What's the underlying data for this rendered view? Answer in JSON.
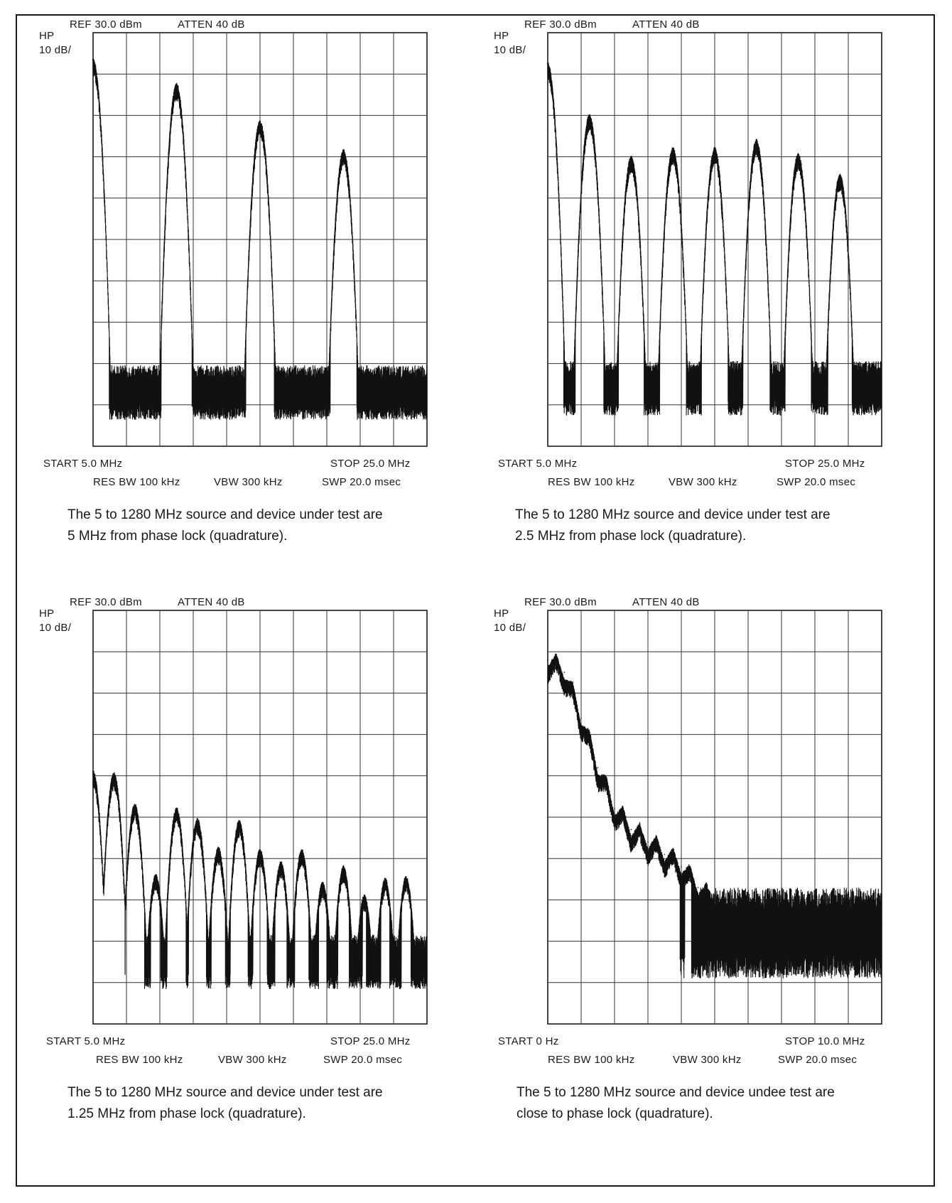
{
  "panels": [
    {
      "hp": "HP",
      "ref": "REF 30.0 dBm",
      "atten": "ATTEN 40 dB",
      "scale": "10 dB/",
      "start": "START 5.0 MHz",
      "stop": "STOP 25.0 MHz",
      "res_bw": "RES BW 100 kHz",
      "vbw": "VBW 300 kHz",
      "swp": "SWP 20.0 msec",
      "caption_line1": "The 5 to 1280 MHz source and device under test are",
      "caption_line2": "5 MHz from phase lock (quadrature)."
    },
    {
      "hp": "HP",
      "ref": "REF 30.0 dBm",
      "atten": "ATTEN 40 dB",
      "scale": "10 dB/",
      "start": "START 5.0 MHz",
      "stop": "STOP 25.0 MHz",
      "res_bw": "RES BW 100 kHz",
      "vbw": "VBW 300 kHz",
      "swp": "SWP 20.0 msec",
      "caption_line1": "The 5 to 1280 MHz source and device under test are",
      "caption_line2": "2.5 MHz from phase lock (quadrature)."
    },
    {
      "hp": "HP",
      "ref": "REF 30.0 dBm",
      "atten": "ATTEN 40 dB",
      "scale": "10 dB/",
      "start": "START 5.0 MHz",
      "stop": "STOP 25.0 MHz",
      "res_bw": "RES BW 100 kHz",
      "vbw": "VBW 300 kHz",
      "swp": "SWP 20.0 msec",
      "caption_line1": "The 5 to 1280 MHz source and device under test are",
      "caption_line2": "1.25 MHz from phase lock (quadrature)."
    },
    {
      "hp": "HP",
      "ref": "REF 30.0 dBm",
      "atten": "ATTEN 40 dB",
      "scale": "10 dB/",
      "start": "START 0 Hz",
      "stop": "STOP 10.0 MHz",
      "res_bw": "RES BW 100 kHz",
      "vbw": "VBW 300 kHz",
      "swp": "SWP 20.0 msec",
      "caption_line1": "The 5 to 1280 MHz source and device undee test are",
      "caption_line2": "close to phase lock (quadrature)."
    }
  ],
  "chart_data": [
    {
      "type": "line",
      "x_unit": "MHz",
      "xlim": [
        5,
        25
      ],
      "ylim": [
        -70,
        30
      ],
      "grid": true,
      "noise_floor_dbm": -57,
      "noise_spread_db": 6,
      "peaks": [
        {
          "x": 5.0,
          "y": 23.5
        },
        {
          "x": 10.0,
          "y": 17.5
        },
        {
          "x": 15.0,
          "y": 8.5
        },
        {
          "x": 20.0,
          "y": 1.5
        }
      ]
    },
    {
      "type": "line",
      "x_unit": "MHz",
      "xlim": [
        5,
        25
      ],
      "ylim": [
        -70,
        30
      ],
      "grid": true,
      "noise_floor_dbm": -56,
      "noise_spread_db": 6,
      "peaks": [
        {
          "x": 5.0,
          "y": 22.5
        },
        {
          "x": 7.5,
          "y": 10.0
        },
        {
          "x": 10.0,
          "y": 0.0
        },
        {
          "x": 12.5,
          "y": 2.0
        },
        {
          "x": 15.0,
          "y": 2.0
        },
        {
          "x": 17.5,
          "y": 4.0
        },
        {
          "x": 20.0,
          "y": 0.5
        },
        {
          "x": 22.5,
          "y": -4.5
        }
      ]
    },
    {
      "type": "line",
      "x_unit": "MHz",
      "xlim": [
        5,
        25
      ],
      "ylim": [
        -70,
        30
      ],
      "grid": true,
      "noise_floor_dbm": -55,
      "noise_spread_db": 6,
      "peaks": [
        {
          "x": 5.0,
          "y": -9.0
        },
        {
          "x": 6.25,
          "y": -9.5
        },
        {
          "x": 7.5,
          "y": -17.0
        },
        {
          "x": 8.75,
          "y": -34.0
        },
        {
          "x": 10.0,
          "y": -18.0
        },
        {
          "x": 11.25,
          "y": -20.5
        },
        {
          "x": 12.5,
          "y": -27.5
        },
        {
          "x": 13.75,
          "y": -21.0
        },
        {
          "x": 15.0,
          "y": -28.0
        },
        {
          "x": 16.25,
          "y": -31.0
        },
        {
          "x": 17.5,
          "y": -28.0
        },
        {
          "x": 18.75,
          "y": -36.0
        },
        {
          "x": 20.0,
          "y": -32.0
        },
        {
          "x": 21.25,
          "y": -39.0
        },
        {
          "x": 22.5,
          "y": -35.0
        },
        {
          "x": 23.75,
          "y": -34.5
        }
      ]
    },
    {
      "type": "line",
      "x_unit": "MHz",
      "xlim": [
        0,
        10
      ],
      "ylim": [
        -70,
        30
      ],
      "grid": true,
      "noise_floor_dbm": -48,
      "noise_spread_db": 10,
      "envelope": [
        {
          "x": 0.0,
          "y": 18.0
        },
        {
          "x": 0.5,
          "y": 15.0
        },
        {
          "x": 1.0,
          "y": 4.0
        },
        {
          "x": 1.5,
          "y": -8.0
        },
        {
          "x": 2.0,
          "y": -18.0
        },
        {
          "x": 2.5,
          "y": -23.0
        },
        {
          "x": 3.0,
          "y": -26.0
        },
        {
          "x": 3.5,
          "y": -29.0
        },
        {
          "x": 4.0,
          "y": -32.0
        },
        {
          "x": 4.5,
          "y": -37.0
        },
        {
          "x": 5.0,
          "y": -41.0
        },
        {
          "x": 6.0,
          "y": -44.0
        },
        {
          "x": 8.0,
          "y": -45.0
        },
        {
          "x": 10.0,
          "y": -46.0
        }
      ],
      "ripple_spacing_mhz": 0.5
    }
  ]
}
